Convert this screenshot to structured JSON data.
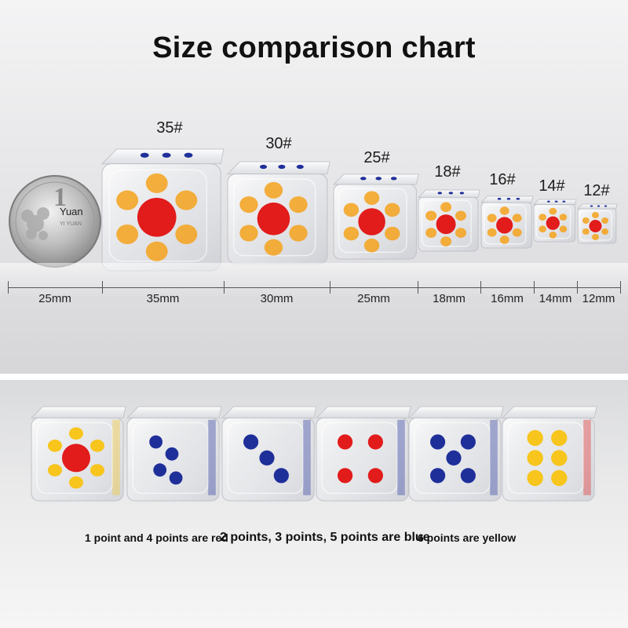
{
  "title": "Size comparison chart",
  "coin": {
    "denomination": "1",
    "unit": "Yuan",
    "pinyin": "YI YUAN"
  },
  "dice_sizes": [
    {
      "code": "35#",
      "width": "35mm"
    },
    {
      "code": "30#",
      "width": "30mm"
    },
    {
      "code": "25#",
      "width": "25mm"
    },
    {
      "code": "18#",
      "width": "18mm"
    },
    {
      "code": "16#",
      "width": "16mm"
    },
    {
      "code": "14#",
      "width": "14mm"
    },
    {
      "code": "12#",
      "width": "12mm"
    }
  ],
  "coin_width": "25mm",
  "captions": [
    "1 point and 4 points are red",
    "2 points, 3 points, 5 points are blue",
    "6 points are yellow"
  ],
  "colors": {
    "red_pip": "#e21b1b",
    "blue_pip": "#1f2f9a",
    "yellow_pip": "#f7c51c",
    "yellow_flower": "#f4a21c"
  }
}
